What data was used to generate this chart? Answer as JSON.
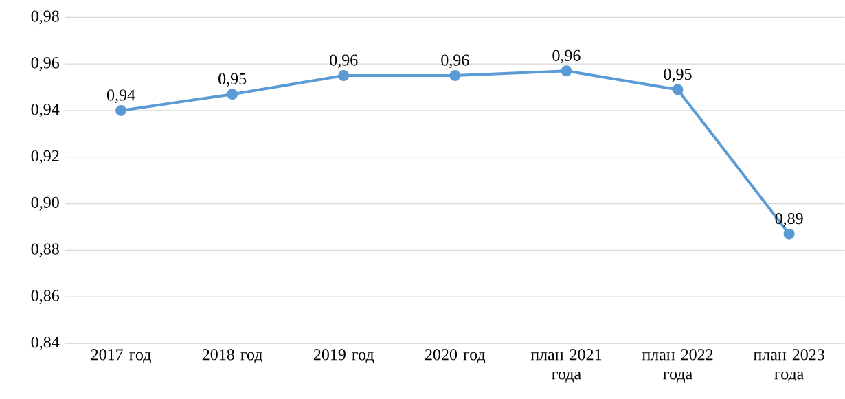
{
  "chart_data": {
    "type": "line",
    "categories": [
      "2017 год",
      "2018 год",
      "2019 год",
      "2020 год",
      "план 2021 года",
      "план 2022 года",
      "план 2023 года"
    ],
    "series": [
      {
        "color": "#5b9bd5",
        "values": [
          0.94,
          0.947,
          0.955,
          0.955,
          0.957,
          0.949,
          0.887
        ],
        "value_labels": [
          "0,94",
          "0,95",
          "0,96",
          "0,96",
          "0,96",
          "0,95",
          "0,89"
        ]
      }
    ],
    "ylim": [
      0.84,
      0.98
    ],
    "yticks": [
      {
        "value": 0.84,
        "label": "0,84"
      },
      {
        "value": 0.86,
        "label": "0,86"
      },
      {
        "value": 0.88,
        "label": "0,88"
      },
      {
        "value": 0.9,
        "label": "0,90"
      },
      {
        "value": 0.92,
        "label": "0,92"
      },
      {
        "value": 0.94,
        "label": "0,94"
      },
      {
        "value": 0.96,
        "label": "0,96"
      },
      {
        "value": 0.98,
        "label": "0,98"
      }
    ],
    "grid": "y",
    "marker": "circle",
    "line_style": "solid"
  }
}
